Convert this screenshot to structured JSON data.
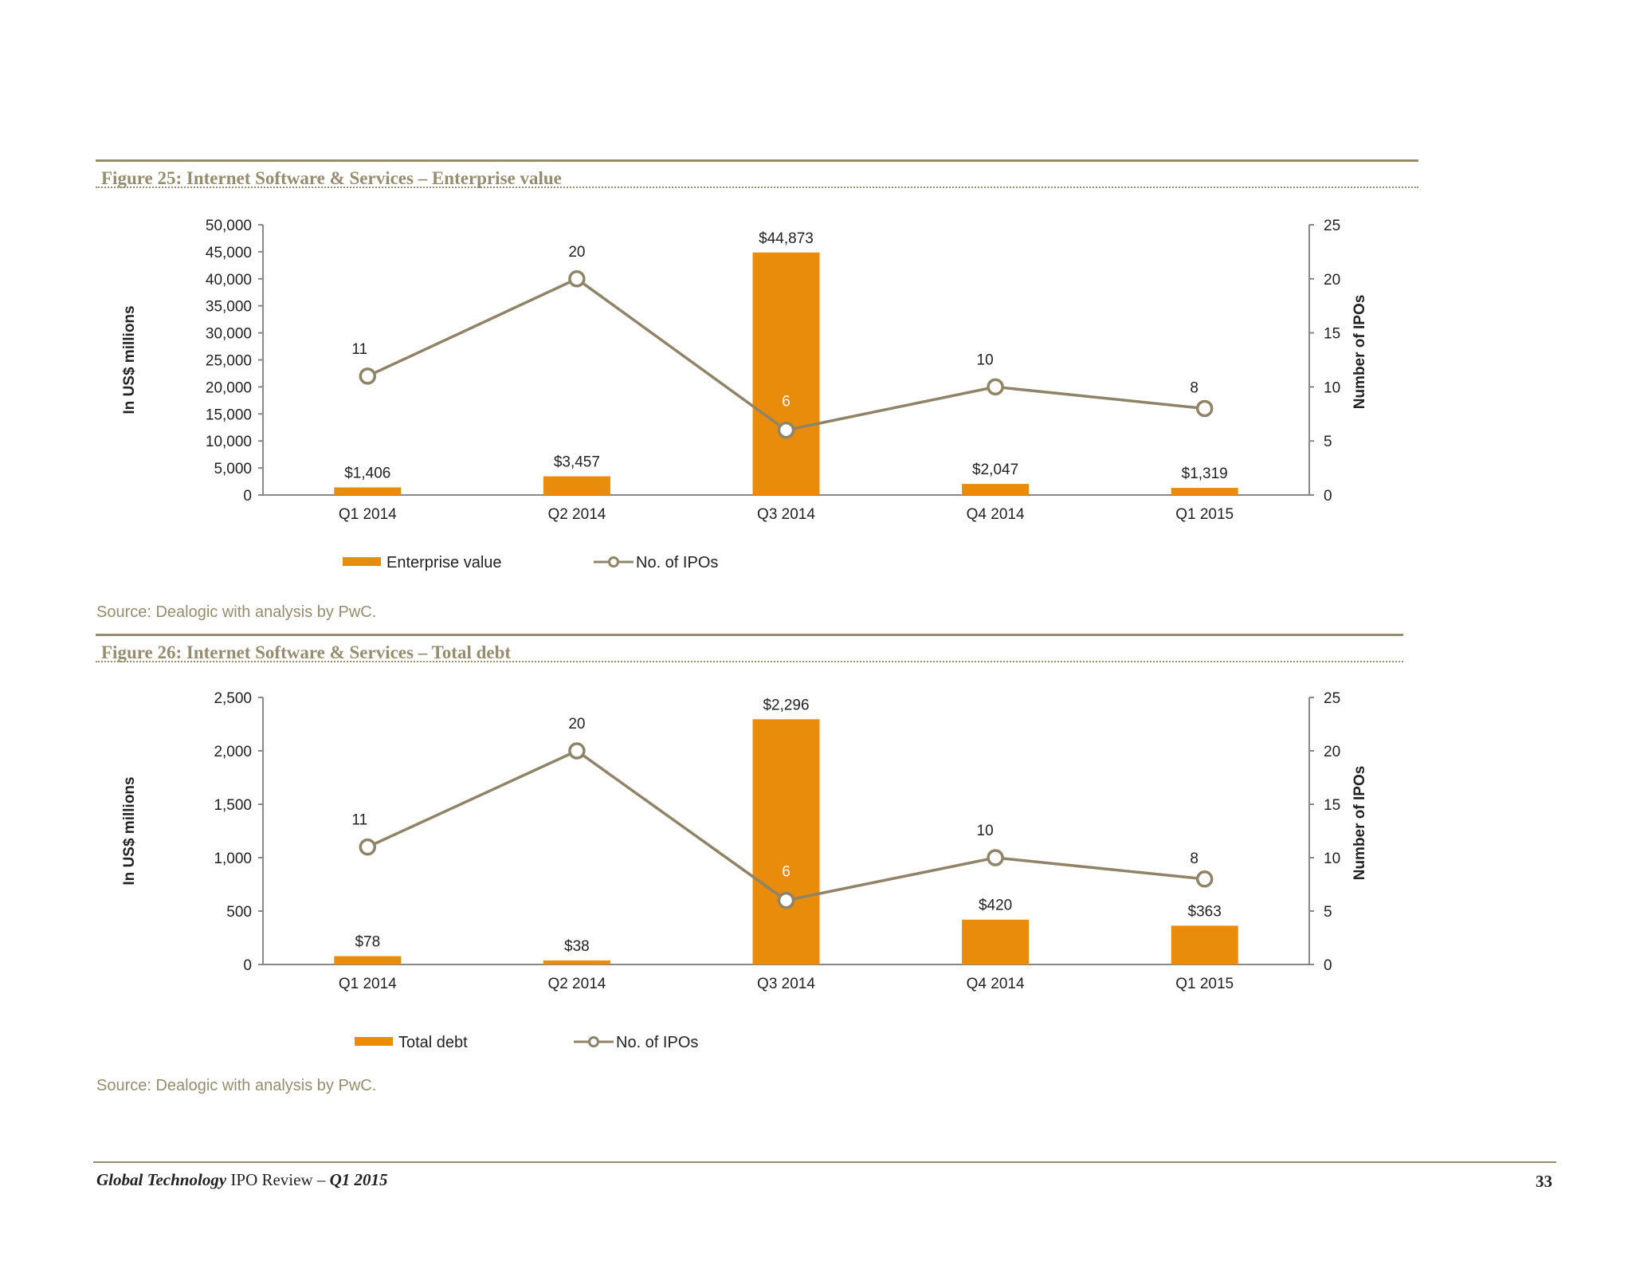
{
  "colors": {
    "bar": "#e98b0b",
    "line": "#8f8467",
    "accent": "#968c6e",
    "text": "#222222"
  },
  "figures": [
    {
      "title": "Figure 25: Internet Software & Services – Enterprise value",
      "source": "Source: Dealogic with analysis by PwC.",
      "chart_data": {
        "type": "bar",
        "categories": [
          "Q1 2014",
          "Q2 2014",
          "Q3 2014",
          "Q4 2014",
          "Q1 2015"
        ],
        "series": [
          {
            "name": "Enterprise value",
            "type": "bar",
            "axis": "left",
            "values": [
              1406,
              3457,
              44873,
              2047,
              1319
            ],
            "labels": [
              "$1,406",
              "$3,457",
              "$44,873",
              "$2,047",
              "$1,319"
            ]
          },
          {
            "name": "No. of IPOs",
            "type": "line",
            "axis": "right",
            "values": [
              11,
              20,
              6,
              10,
              8
            ]
          }
        ],
        "ylabel": "In US$ millions",
        "y2label": "Number of IPOs",
        "ylim": [
          0,
          50000
        ],
        "y_ticks": [
          "0",
          "5,000",
          "10,000",
          "15,000",
          "20,000",
          "25,000",
          "30,000",
          "35,000",
          "40,000",
          "45,000",
          "50,000"
        ],
        "y2lim": [
          0,
          25
        ],
        "y2_ticks": [
          "0",
          "5",
          "10",
          "15",
          "20",
          "25"
        ],
        "grid": false,
        "legend": "bottom"
      }
    },
    {
      "title": "Figure 26: Internet Software & Services – Total debt",
      "source": "Source: Dealogic with analysis by PwC.",
      "chart_data": {
        "type": "bar",
        "categories": [
          "Q1 2014",
          "Q2 2014",
          "Q3 2014",
          "Q4 2014",
          "Q1 2015"
        ],
        "series": [
          {
            "name": "Total debt",
            "type": "bar",
            "axis": "left",
            "values": [
              78,
              38,
              2296,
              420,
              363
            ],
            "labels": [
              "$78",
              "$38",
              "$2,296",
              "$420",
              "$363"
            ]
          },
          {
            "name": "No. of IPOs",
            "type": "line",
            "axis": "right",
            "values": [
              11,
              20,
              6,
              10,
              8
            ]
          }
        ],
        "ylabel": "In US$ millions",
        "y2label": "Number of IPOs",
        "ylim": [
          0,
          2500
        ],
        "y_ticks": [
          "0",
          "500",
          "1,000",
          "1,500",
          "2,000",
          "2,500"
        ],
        "y2lim": [
          0,
          25
        ],
        "y2_ticks": [
          "0",
          "5",
          "10",
          "15",
          "20",
          "25"
        ],
        "grid": false,
        "legend": "bottom"
      }
    }
  ],
  "footer": {
    "publication_italic": "Global Technology",
    "publication_plain": " IPO Review",
    "dash": " – ",
    "period": "Q1 2015",
    "page_number": "33"
  }
}
